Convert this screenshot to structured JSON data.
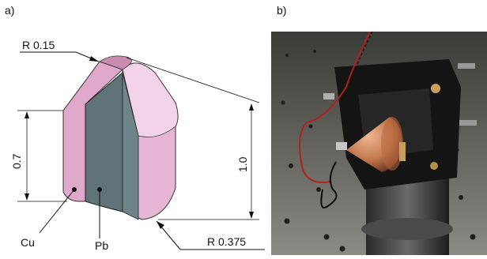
{
  "figure": {
    "panel_a": {
      "label": "a)",
      "dimensions": {
        "tip_radius": "R 0.15",
        "base_radius": "R 0.375",
        "cylinder_height": "0.7",
        "total_height": "1.0"
      },
      "materials": {
        "outer": "Cu",
        "core": "Pb"
      },
      "colors": {
        "copper_shell": "#e8b8d8",
        "lead_core": "#5f7378"
      }
    },
    "panel_b": {
      "label": "b)",
      "description_icon": "photo-of-mounted-copper-bullet"
    }
  }
}
